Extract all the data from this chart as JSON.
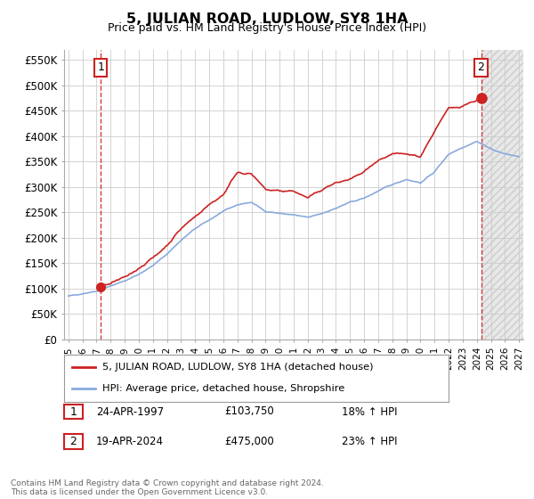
{
  "title": "5, JULIAN ROAD, LUDLOW, SY8 1HA",
  "subtitle": "Price paid vs. HM Land Registry's House Price Index (HPI)",
  "ylabel_ticks": [
    "£0",
    "£50K",
    "£100K",
    "£150K",
    "£200K",
    "£250K",
    "£300K",
    "£350K",
    "£400K",
    "£450K",
    "£500K",
    "£550K"
  ],
  "ytick_values": [
    0,
    50000,
    100000,
    150000,
    200000,
    250000,
    300000,
    350000,
    400000,
    450000,
    500000,
    550000
  ],
  "ylim": [
    0,
    570000
  ],
  "xlim_start": 1994.7,
  "xlim_end": 2027.3,
  "xtick_years": [
    1995,
    1996,
    1997,
    1998,
    1999,
    2000,
    2001,
    2002,
    2003,
    2004,
    2005,
    2006,
    2007,
    2008,
    2009,
    2010,
    2011,
    2012,
    2013,
    2014,
    2015,
    2016,
    2017,
    2018,
    2019,
    2020,
    2021,
    2022,
    2023,
    2024,
    2025,
    2026,
    2027
  ],
  "hpi_color": "#88aadd",
  "price_color": "#cc2222",
  "legend_label_price": "5, JULIAN ROAD, LUDLOW, SY8 1HA (detached house)",
  "legend_label_hpi": "HPI: Average price, detached house, Shropshire",
  "sale1_label": "1",
  "sale1_date": "24-APR-1997",
  "sale1_price": "£103,750",
  "sale1_hpi": "18% ↑ HPI",
  "sale1_x": 1997.31,
  "sale1_y": 103750,
  "sale2_label": "2",
  "sale2_date": "19-APR-2024",
  "sale2_price": "£475,000",
  "sale2_hpi": "23% ↑ HPI",
  "sale2_x": 2024.3,
  "sale2_y": 475000,
  "footer": "Contains HM Land Registry data © Crown copyright and database right 2024.\nThis data is licensed under the Open Government Licence v3.0.",
  "background_color": "#ffffff",
  "grid_color": "#cccccc"
}
